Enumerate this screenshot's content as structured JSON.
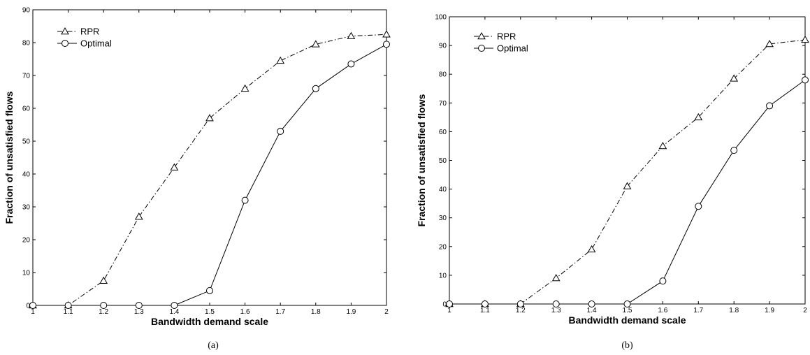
{
  "chart_data": [
    {
      "type": "line",
      "panel_label": "(a)",
      "xlabel": "Bandwidth demand scale",
      "ylabel": "Fraction of unsatisfied flows",
      "xlim": [
        1,
        2
      ],
      "ylim": [
        0,
        90
      ],
      "x_ticks": [
        "1",
        "1.1",
        "1.2",
        "1.3",
        "1.4",
        "1.5",
        "1.6",
        "1.7",
        "1.8",
        "1.9",
        "2"
      ],
      "y_ticks": [
        0,
        10,
        20,
        30,
        40,
        50,
        60,
        70,
        80,
        90
      ],
      "y_tick_labels": [
        "0",
        "10",
        "20",
        "30",
        "40",
        "50",
        "60",
        "70",
        "80",
        "90"
      ],
      "x": [
        1,
        1.1,
        1.2,
        1.3,
        1.4,
        1.5,
        1.6,
        1.7,
        1.8,
        1.9,
        2
      ],
      "legend_position": "top-left",
      "grid": false,
      "series": [
        {
          "name": "RPR",
          "marker": "triangle",
          "line_style": "dash-dot",
          "values": [
            0,
            0,
            7.5,
            27,
            42,
            57,
            66,
            74.5,
            79.5,
            82,
            82.5
          ]
        },
        {
          "name": "Optimal",
          "marker": "circle",
          "line_style": "solid",
          "values": [
            0,
            0,
            0,
            0,
            0,
            4.5,
            32,
            53,
            66,
            73.5,
            79.5
          ]
        }
      ]
    },
    {
      "type": "line",
      "panel_label": "(b)",
      "xlabel": "Bandwidth demand scale",
      "ylabel": "Fraction of unsatisfied flows",
      "xlim": [
        1,
        2
      ],
      "ylim": [
        0,
        100
      ],
      "x_ticks": [
        "1",
        "1.1",
        "1.2",
        "1.3",
        "1.4",
        "1.5",
        "1.6",
        "1.7",
        "1.8",
        "1.9",
        "2"
      ],
      "y_ticks": [
        0,
        10,
        20,
        30,
        40,
        50,
        60,
        70,
        80,
        90,
        100
      ],
      "y_tick_labels": [
        "0",
        "10",
        "20",
        "30",
        "40",
        "50",
        "60",
        "70",
        "80",
        "90",
        "100"
      ],
      "x": [
        1,
        1.1,
        1.2,
        1.3,
        1.4,
        1.5,
        1.6,
        1.7,
        1.8,
        1.9,
        2
      ],
      "legend_position": "top-left",
      "grid": false,
      "series": [
        {
          "name": "RPR",
          "marker": "triangle",
          "line_style": "dash-dot",
          "values": [
            0,
            0,
            0,
            9,
            19,
            41,
            55,
            65,
            78.5,
            90.5,
            92
          ]
        },
        {
          "name": "Optimal",
          "marker": "circle",
          "line_style": "solid",
          "values": [
            0,
            0,
            0,
            0,
            0,
            0,
            8,
            34,
            53.5,
            69,
            78
          ]
        }
      ]
    }
  ]
}
